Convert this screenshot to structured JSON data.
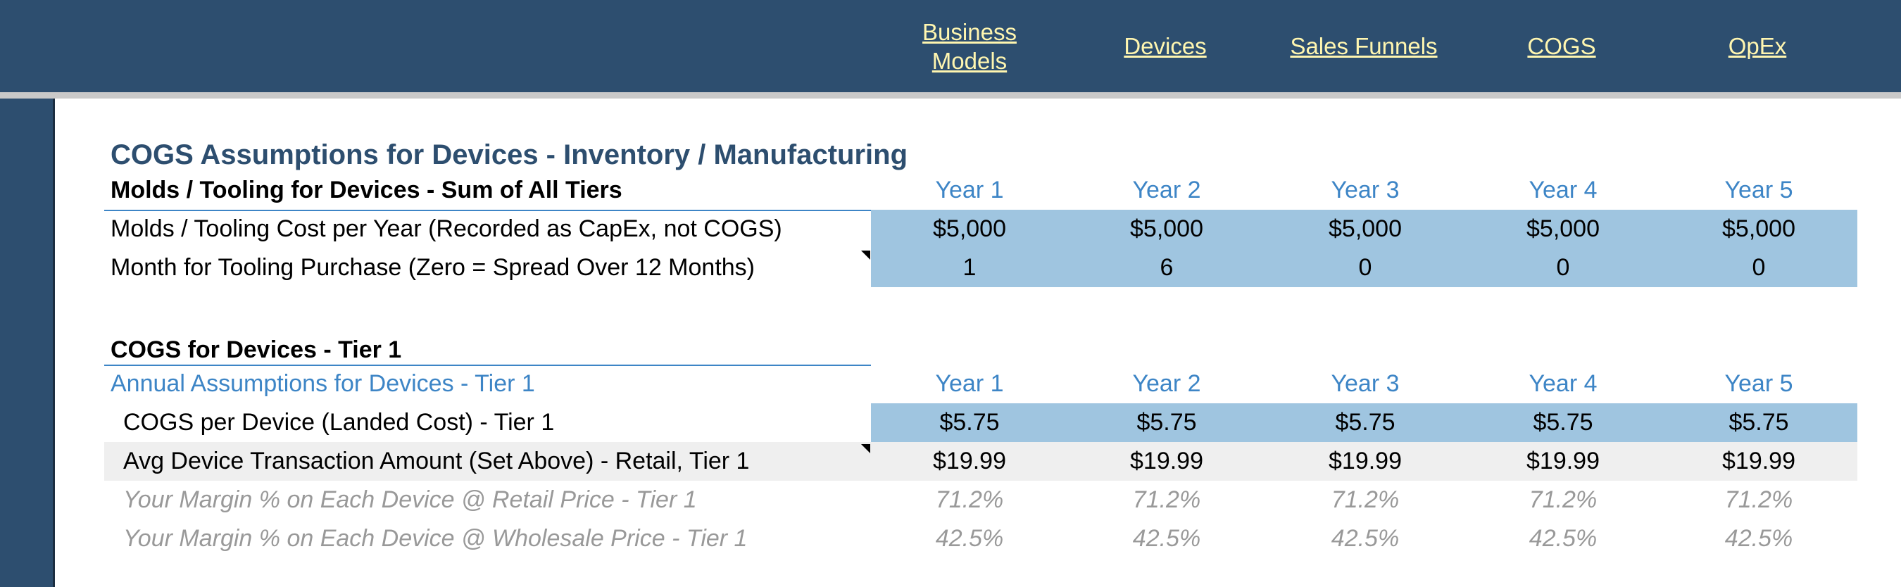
{
  "nav": {
    "links": [
      {
        "label": "Business\nModels"
      },
      {
        "label": "Devices"
      },
      {
        "label": "Sales Funnels"
      },
      {
        "label": "COGS"
      },
      {
        "label": "OpEx"
      }
    ]
  },
  "section": {
    "title": "COGS Assumptions for Devices - Inventory / Manufacturing"
  },
  "molds": {
    "heading": "Molds / Tooling for Devices - Sum of All Tiers",
    "years": [
      "Year 1",
      "Year 2",
      "Year 3",
      "Year 4",
      "Year 5"
    ],
    "rows": [
      {
        "label": "Molds / Tooling Cost per Year (Recorded as CapEx, not COGS)",
        "values": [
          "$5,000",
          "$5,000",
          "$5,000",
          "$5,000",
          "$5,000"
        ]
      },
      {
        "label": "Month for Tooling Purchase (Zero = Spread Over 12 Months)",
        "values": [
          "1",
          "6",
          "0",
          "0",
          "0"
        ]
      }
    ]
  },
  "tier1": {
    "heading": "COGS for Devices - Tier 1",
    "subheading": "Annual Assumptions for Devices - Tier 1",
    "years": [
      "Year 1",
      "Year 2",
      "Year 3",
      "Year 4",
      "Year 5"
    ],
    "rows": [
      {
        "label": "COGS per Device (Landed Cost) - Tier 1",
        "values": [
          "$5.75",
          "$5.75",
          "$5.75",
          "$5.75",
          "$5.75"
        ]
      },
      {
        "label": "Avg Device Transaction Amount (Set Above) - Retail, Tier 1",
        "values": [
          "$19.99",
          "$19.99",
          "$19.99",
          "$19.99",
          "$19.99"
        ]
      },
      {
        "label": "Your Margin % on Each Device @ Retail Price - Tier 1",
        "values": [
          "71.2%",
          "71.2%",
          "71.2%",
          "71.2%",
          "71.2%"
        ]
      },
      {
        "label": "Your Margin % on Each Device @ Wholesale Price - Tier 1",
        "values": [
          "42.5%",
          "42.5%",
          "42.5%",
          "42.5%",
          "42.5%"
        ]
      }
    ]
  },
  "colors": {
    "header_bg": "#2d4e6f",
    "nav_link": "#fff6b0",
    "year_blue": "#3d85c6",
    "input_fill": "#9fc5e0",
    "calc_fill": "#efefef",
    "muted_text": "#999999"
  }
}
